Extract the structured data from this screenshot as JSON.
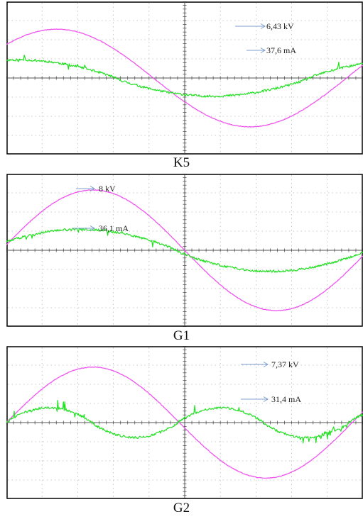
{
  "colors": {
    "voltage": "#ef55ef",
    "current": "#22e022",
    "arrow": "#7f9fcf",
    "grid": "#b8b8b8",
    "frame": "#000000"
  },
  "chart_data": [
    {
      "type": "line",
      "caption": "K5",
      "grid": true,
      "ylim": [
        -4,
        4
      ],
      "annotations": [
        {
          "text": "6,43 kV",
          "target": "voltage"
        },
        {
          "text": "37,6 mA",
          "target": "current"
        }
      ],
      "series": [
        {
          "key": "voltage",
          "amplitude": 2.55,
          "zero_crossings_x": [
            -1.3,
            4.12,
            9.55
          ]
        },
        {
          "key": "current",
          "amplitude": 0.95,
          "zero_crossings_x": [
            -2.4,
            3.05,
            8.5
          ]
        }
      ]
    },
    {
      "type": "line",
      "caption": "G1",
      "grid": true,
      "ylim": [
        -4,
        4
      ],
      "annotations": [
        {
          "text": "8 kV",
          "target": "voltage"
        },
        {
          "text": "36,1 mA",
          "target": "current"
        }
      ],
      "series": [
        {
          "key": "voltage",
          "amplitude": 3.15,
          "zero_crossings_x": [
            -0.15,
            5.0,
            10.15
          ]
        },
        {
          "key": "current",
          "amplitude": 1.1,
          "zero_crossings_x": [
            -0.6,
            4.75,
            9.95
          ]
        }
      ]
    },
    {
      "type": "line",
      "caption": "G2",
      "grid": true,
      "ylim": [
        -4,
        4
      ],
      "annotations": [
        {
          "text": "7,37 kV",
          "target": "voltage"
        },
        {
          "text": "31,4 mA",
          "target": "current"
        }
      ],
      "series": [
        {
          "key": "voltage",
          "amplitude": 2.9,
          "zero_crossings_x": [
            0.0,
            4.85,
            9.7
          ]
        },
        {
          "key": "current",
          "amplitude": 0.78,
          "zero_crossings_x": [
            0.0,
            2.4,
            4.85
          ]
        }
      ]
    }
  ]
}
